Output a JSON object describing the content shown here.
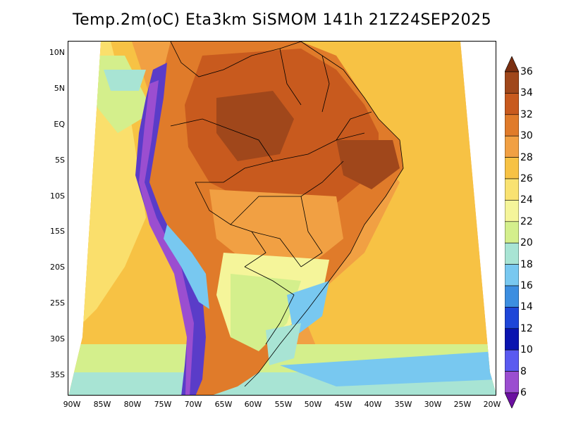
{
  "title": "Temp.2m(oC) Eta3km SiSMOM 141h 21Z24SEP2025",
  "lat_labels": [
    "10N",
    "5N",
    "EQ",
    "5S",
    "10S",
    "15S",
    "20S",
    "25S",
    "30S",
    "35S"
  ],
  "lon_labels": [
    "90W",
    "85W",
    "80W",
    "75W",
    "70W",
    "65W",
    "60W",
    "55W",
    "50W",
    "45W",
    "40W",
    "35W",
    "30W",
    "25W",
    "20W"
  ],
  "colorbar": {
    "labels": [
      "36",
      "34",
      "32",
      "30",
      "28",
      "26",
      "24",
      "22",
      "20",
      "18",
      "16",
      "14",
      "12",
      "10",
      "8",
      "6"
    ],
    "colors": [
      "#7a2e10",
      "#a0471b",
      "#c85a1e",
      "#e07b2a",
      "#f1a043",
      "#f7c244",
      "#f9e271",
      "#f5f59a",
      "#d4ef8c",
      "#a8e4d4",
      "#78c8f0",
      "#3c8ee0",
      "#1e46d8",
      "#0a14b0",
      "#5a5af0",
      "#9b4ed0",
      "#6b10a0"
    ]
  },
  "colors": {
    "ocean_warm": "#f1a043",
    "ocean_mild": "#f7c244",
    "ocean_cool": "#f9e271",
    "land_hot": "#a0471b",
    "land_very_hot": "#7a2e10",
    "andes": "#5a3cc8",
    "border": "#000000"
  }
}
